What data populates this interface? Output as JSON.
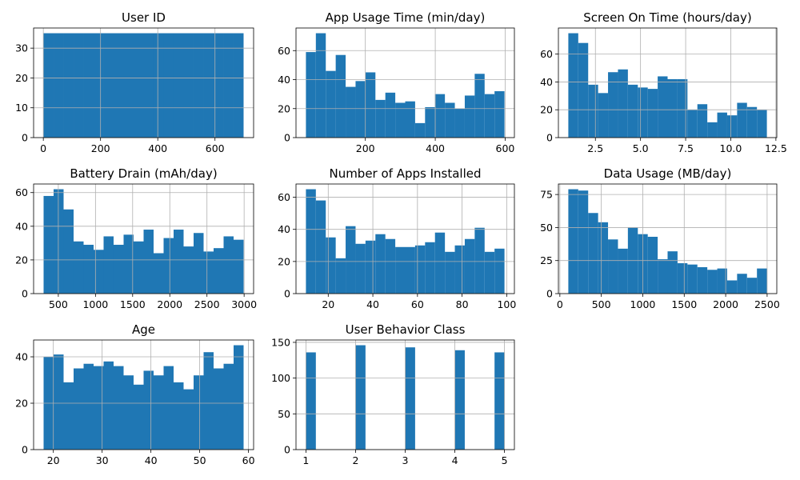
{
  "chart_data": [
    {
      "type": "bar",
      "title": "User ID",
      "bins": [
        [
          1,
          700,
          700
        ]
      ],
      "bin_edges_note": "",
      "counts": [
        35,
        35,
        35,
        35,
        35,
        35,
        35,
        35,
        35,
        35,
        35,
        35,
        35,
        35,
        35,
        35,
        35,
        35,
        35,
        35
      ],
      "xlim": [
        -34,
        735
      ],
      "ylim": [
        0,
        36.75
      ],
      "xticks": [
        0,
        200,
        400,
        600
      ],
      "xtick_labels": [
        "0",
        "200",
        "400",
        "600"
      ],
      "yticks": [
        0,
        10,
        20,
        30
      ],
      "ytick_labels": [
        "0",
        "10",
        "20",
        "30"
      ],
      "grid": true
    },
    {
      "type": "bar",
      "title": "App Usage Time (min/day)",
      "range": [
        30,
        598
      ],
      "counts": [
        59,
        72,
        46,
        57,
        35,
        39,
        45,
        26,
        31,
        24,
        25,
        10,
        21,
        30,
        24,
        20,
        29,
        44,
        30,
        32
      ],
      "xlim": [
        1.6,
        626.4
      ],
      "ylim": [
        0,
        75.6
      ],
      "xticks": [
        200,
        400,
        600
      ],
      "xtick_labels": [
        "200",
        "400",
        "600"
      ],
      "yticks": [
        0,
        20,
        40,
        60
      ],
      "ytick_labels": [
        "0",
        "20",
        "40",
        "60"
      ],
      "grid": true
    },
    {
      "type": "bar",
      "title": "Screen On Time (hours/day)",
      "range": [
        1.0,
        12.0
      ],
      "counts": [
        75,
        68,
        38,
        32,
        47,
        49,
        38,
        36,
        35,
        44,
        42,
        42,
        20,
        24,
        11,
        18,
        16,
        25,
        22,
        20
      ],
      "xlim": [
        0.45,
        12.55
      ],
      "ylim": [
        0,
        78.75
      ],
      "xticks": [
        2.5,
        5.0,
        7.5,
        10.0,
        12.5
      ],
      "xtick_labels": [
        "2.5",
        "5.0",
        "7.5",
        "10.0",
        "12.5"
      ],
      "yticks": [
        0,
        20,
        40,
        60
      ],
      "ytick_labels": [
        "0",
        "20",
        "40",
        "60"
      ],
      "grid": true
    },
    {
      "type": "bar",
      "title": "Battery Drain (mAh/day)",
      "range": [
        302,
        2993
      ],
      "counts": [
        58,
        62,
        50,
        31,
        29,
        26,
        34,
        29,
        35,
        31,
        38,
        24,
        33,
        38,
        28,
        36,
        25,
        27,
        34,
        32
      ],
      "xlim": [
        167.5,
        3127.5
      ],
      "ylim": [
        0,
        65.1
      ],
      "xticks": [
        500,
        1000,
        1500,
        2000,
        2500,
        3000
      ],
      "xtick_labels": [
        "500",
        "1000",
        "1500",
        "2000",
        "2500",
        "3000"
      ],
      "yticks": [
        0,
        20,
        40,
        60
      ],
      "ytick_labels": [
        "0",
        "20",
        "40",
        "60"
      ],
      "grid": true
    },
    {
      "type": "bar",
      "title": "Number of Apps Installed",
      "range": [
        10,
        99
      ],
      "counts": [
        65,
        58,
        35,
        22,
        42,
        31,
        33,
        37,
        34,
        29,
        29,
        30,
        32,
        38,
        26,
        30,
        34,
        41,
        26,
        28
      ],
      "xlim": [
        5.55,
        103.45
      ],
      "ylim": [
        0,
        68.25
      ],
      "xticks": [
        20,
        40,
        60,
        80,
        100
      ],
      "xtick_labels": [
        "20",
        "40",
        "60",
        "80",
        "100"
      ],
      "yticks": [
        0,
        20,
        40,
        60
      ],
      "ytick_labels": [
        "0",
        "20",
        "40",
        "60"
      ],
      "grid": true
    },
    {
      "type": "bar",
      "title": "Data Usage (MB/day)",
      "range": [
        102,
        2497
      ],
      "counts": [
        79,
        78,
        61,
        54,
        41,
        34,
        50,
        45,
        43,
        26,
        32,
        23,
        22,
        20,
        18,
        19,
        10,
        15,
        12,
        19
      ],
      "xlim": [
        -17.75,
        2616.75
      ],
      "ylim": [
        0,
        82.95
      ],
      "xticks": [
        0,
        500,
        1000,
        1500,
        2000,
        2500
      ],
      "xtick_labels": [
        "0",
        "500",
        "1000",
        "1500",
        "2000",
        "2500"
      ],
      "yticks": [
        0,
        25,
        50,
        75
      ],
      "ytick_labels": [
        "0",
        "25",
        "50",
        "75"
      ],
      "grid": true
    },
    {
      "type": "bar",
      "title": "Age",
      "range": [
        18,
        59
      ],
      "counts": [
        40,
        41,
        29,
        35,
        37,
        36,
        38,
        36,
        32,
        28,
        34,
        32,
        36,
        29,
        26,
        32,
        42,
        35,
        37,
        45
      ],
      "xlim": [
        15.95,
        61.05
      ],
      "ylim": [
        0,
        47.25
      ],
      "xticks": [
        20,
        30,
        40,
        50,
        60
      ],
      "xtick_labels": [
        "20",
        "30",
        "40",
        "50",
        "60"
      ],
      "yticks": [
        0,
        20,
        40
      ],
      "ytick_labels": [
        "0",
        "20",
        "40"
      ],
      "grid": true
    },
    {
      "type": "bar",
      "title": "User Behavior Class",
      "range": [
        1,
        5
      ],
      "counts": [
        136,
        0,
        0,
        0,
        0,
        146,
        0,
        0,
        0,
        0,
        143,
        0,
        0,
        0,
        0,
        139,
        0,
        0,
        0,
        136
      ],
      "xlim": [
        0.8,
        5.2
      ],
      "ylim": [
        0,
        153.3
      ],
      "xticks": [
        1,
        2,
        3,
        4,
        5
      ],
      "xtick_labels": [
        "1",
        "2",
        "3",
        "4",
        "5"
      ],
      "yticks": [
        0,
        50,
        100,
        150
      ],
      "ytick_labels": [
        "0",
        "50",
        "100",
        "150"
      ],
      "grid": true
    }
  ]
}
